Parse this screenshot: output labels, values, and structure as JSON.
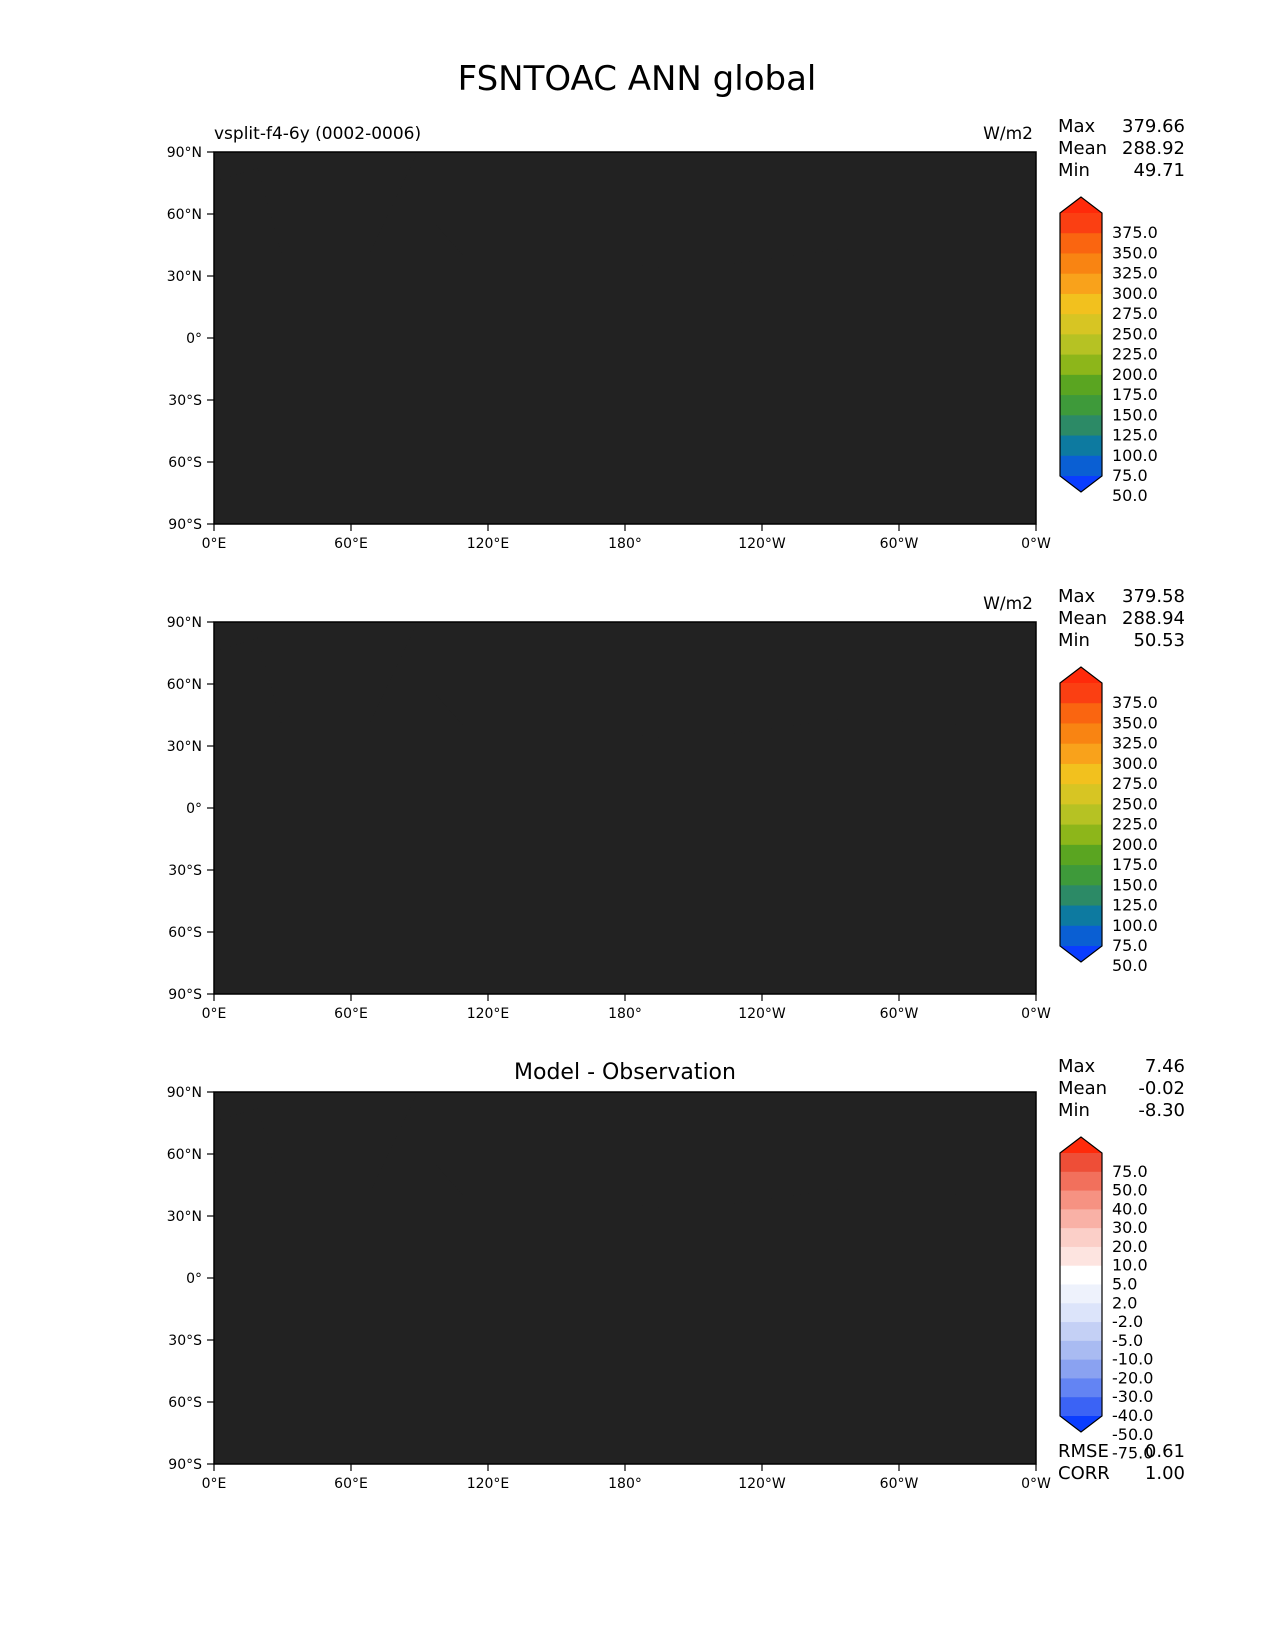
{
  "figure_title": "FSNTOAC ANN global",
  "axes": {
    "lat_ticks": [
      "90°N",
      "60°N",
      "30°N",
      "0°",
      "30°S",
      "60°S",
      "90°S"
    ],
    "lon_ticks": [
      "0°E",
      "60°E",
      "120°E",
      "180°",
      "120°W",
      "60°W",
      "0°W"
    ]
  },
  "colors": {
    "field": [
      "#0a3dff",
      "#0a5fd3",
      "#0d7aa0",
      "#2c8a66",
      "#3e9a3a",
      "#5aa521",
      "#8db61a",
      "#b6c223",
      "#d7c523",
      "#f2c11e",
      "#f9a21b",
      "#f98412",
      "#fa6510",
      "#fb3f12",
      "#ff2a0a"
    ],
    "diff": [
      "#0a3dff",
      "#3b63f5",
      "#6384f3",
      "#8aa2f1",
      "#a9bbf2",
      "#c4d0f5",
      "#dce4fa",
      "#eef2fc",
      "#ffffff",
      "#fde4e0",
      "#fbcfc8",
      "#f9b1a6",
      "#f69282",
      "#f2705c",
      "#ee4e37",
      "#ff2a0a"
    ],
    "coast": "#222222"
  },
  "chart_data": [
    {
      "type": "heatmap",
      "title": "",
      "left_title": "vsplit-f4-6y (0002-0006)",
      "units": "W/m2",
      "stats": [
        {
          "label": "Max",
          "value": "379.66"
        },
        {
          "label": "Mean",
          "value": "288.92"
        },
        {
          "label": "Min",
          "value": "49.71"
        }
      ],
      "colorbar_levels": [
        "375.0",
        "350.0",
        "325.0",
        "300.0",
        "275.0",
        "250.0",
        "225.0",
        "200.0",
        "175.0",
        "150.0",
        "125.0",
        "100.0",
        "75.0",
        "50.0"
      ],
      "value_range": [
        49.71,
        379.66
      ]
    },
    {
      "type": "heatmap",
      "title": "",
      "left_title": "",
      "units": "W/m2",
      "stats": [
        {
          "label": "Max",
          "value": "379.58"
        },
        {
          "label": "Mean",
          "value": "288.94"
        },
        {
          "label": "Min",
          "value": "50.53"
        }
      ],
      "colorbar_levels": [
        "375.0",
        "350.0",
        "325.0",
        "300.0",
        "275.0",
        "250.0",
        "225.0",
        "200.0",
        "175.0",
        "150.0",
        "125.0",
        "100.0",
        "75.0",
        "50.0"
      ],
      "value_range": [
        50.53,
        379.58
      ]
    },
    {
      "type": "heatmap",
      "title": "Model - Observation",
      "left_title": "",
      "units": "",
      "stats": [
        {
          "label": "Max",
          "value": "7.46"
        },
        {
          "label": "Mean",
          "value": "-0.02"
        },
        {
          "label": "Min",
          "value": "-8.30"
        }
      ],
      "colorbar_levels": [
        "75.0",
        "50.0",
        "40.0",
        "30.0",
        "20.0",
        "10.0",
        "5.0",
        "2.0",
        "-2.0",
        "-5.0",
        "-10.0",
        "-20.0",
        "-30.0",
        "-40.0",
        "-50.0",
        "-75.0"
      ],
      "value_range": [
        -8.3,
        7.46
      ],
      "metrics": [
        {
          "label": "RMSE",
          "value": "0.61"
        },
        {
          "label": "CORR",
          "value": "1.00"
        }
      ]
    }
  ]
}
